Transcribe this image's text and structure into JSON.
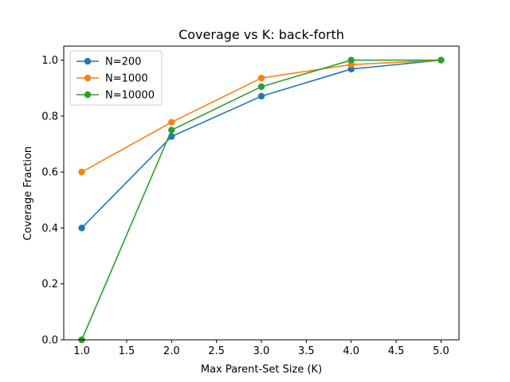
{
  "chart_data": {
    "type": "line",
    "title": "Coverage vs K: back-forth",
    "xlabel": "Max Parent-Set Size (K)",
    "ylabel": "Coverage Fraction",
    "xlim": [
      0.8,
      5.2
    ],
    "ylim": [
      0.0,
      1.05
    ],
    "x_ticks": [
      1.0,
      1.5,
      2.0,
      2.5,
      3.0,
      3.5,
      4.0,
      4.5,
      5.0
    ],
    "x_tick_labels": [
      "1.0",
      "1.5",
      "2.0",
      "2.5",
      "3.0",
      "3.5",
      "4.0",
      "4.5",
      "5.0"
    ],
    "y_ticks": [
      0.0,
      0.2,
      0.4,
      0.6,
      0.8,
      1.0
    ],
    "y_tick_labels": [
      "0.0",
      "0.2",
      "0.4",
      "0.6",
      "0.8",
      "1.0"
    ],
    "grid": false,
    "legend_position": "top-left",
    "x": [
      1,
      2,
      3,
      4,
      5
    ],
    "series": [
      {
        "name": "N=200",
        "color": "#1f77b4",
        "values": [
          0.4,
          0.727,
          0.871,
          0.968,
          1.0
        ]
      },
      {
        "name": "N=1000",
        "color": "#ff7f0e",
        "values": [
          0.6,
          0.778,
          0.936,
          0.984,
          1.0
        ]
      },
      {
        "name": "N=10000",
        "color": "#2ca02c",
        "values": [
          0.0,
          0.75,
          0.905,
          1.0,
          1.0
        ]
      }
    ]
  }
}
